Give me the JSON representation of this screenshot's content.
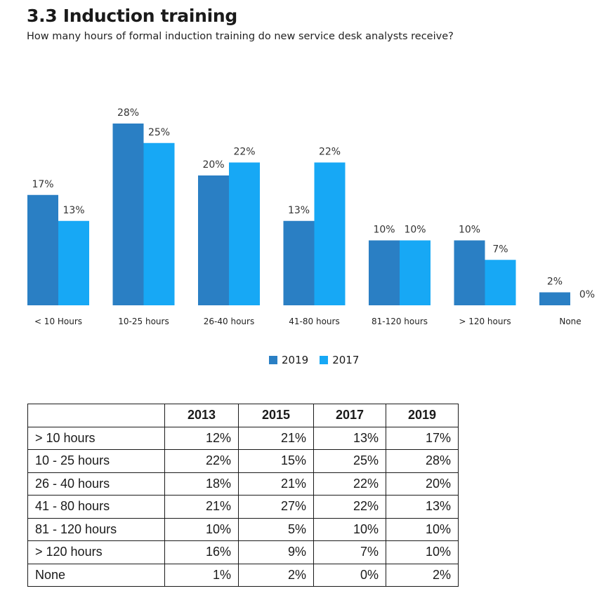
{
  "header": {
    "title": "3.3 Induction training",
    "subtitle": "How many hours of formal induction training do new service desk analysts receive?"
  },
  "colors": {
    "series_2019": "#2a7fc4",
    "series_2017": "#17a8f5"
  },
  "chart_data": {
    "type": "bar",
    "categories": [
      "< 10 Hours",
      "10-25 hours",
      "26-40 hours",
      "41-80 hours",
      "81-120 hours",
      "> 120 hours",
      "None"
    ],
    "series": [
      {
        "name": "2019",
        "values": [
          17,
          28,
          20,
          13,
          10,
          10,
          2
        ],
        "labels": [
          "17%",
          "28%",
          "20%",
          "13%",
          "10%",
          "10%",
          "2%"
        ]
      },
      {
        "name": "2017",
        "values": [
          13,
          25,
          22,
          22,
          10,
          7,
          0
        ],
        "labels": [
          "13%",
          "25%",
          "22%",
          "22%",
          "10%",
          "7%",
          "0%"
        ]
      }
    ],
    "ylim": [
      0,
      28
    ],
    "legend": "bottom-center",
    "grid": false
  },
  "table": {
    "headers": [
      "2013",
      "2015",
      "2017",
      "2019"
    ],
    "rows": [
      {
        "label": "> 10 hours",
        "values": [
          "12%",
          "21%",
          "13%",
          "17%"
        ]
      },
      {
        "label": "10  - 25 hours",
        "values": [
          "22%",
          "15%",
          "25%",
          "28%"
        ]
      },
      {
        "label": "26  - 40 hours",
        "values": [
          "18%",
          "21%",
          "22%",
          "20%"
        ]
      },
      {
        "label": "41  - 80 hours",
        "values": [
          "21%",
          "27%",
          "22%",
          "13%"
        ]
      },
      {
        "label": "81  - 120 hours",
        "values": [
          "10%",
          "5%",
          "10%",
          "10%"
        ]
      },
      {
        "label": "> 120 hours",
        "values": [
          "16%",
          "9%",
          "7%",
          "10%"
        ]
      },
      {
        "label": "None",
        "values": [
          "1%",
          "2%",
          "0%",
          "2%"
        ]
      }
    ]
  }
}
